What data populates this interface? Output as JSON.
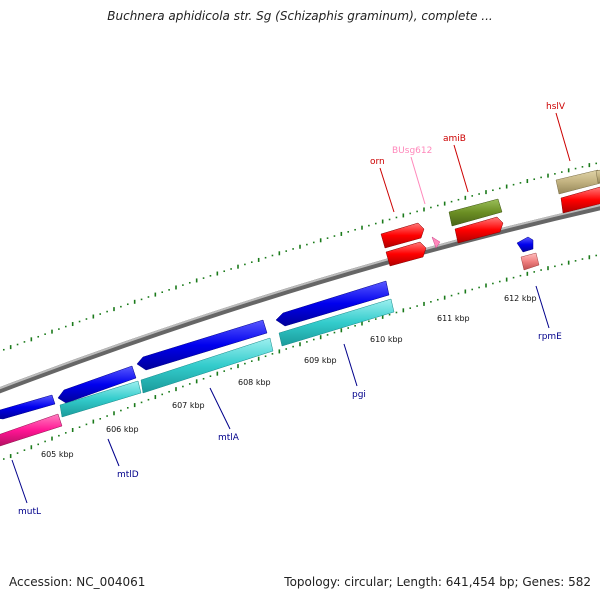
{
  "title": "Buchnera aphidicola str. Sg (Schizaphis graminum), complete ...",
  "footer": {
    "accession": "Accession: NC_004061",
    "summary": "Topology: circular; Length: 641,454 bp; Genes: 582"
  },
  "ticks": [
    "605 kbp",
    "606 kbp",
    "607 kbp",
    "608 kbp",
    "609 kbp",
    "610 kbp",
    "611 kbp",
    "612 kbp"
  ],
  "genes": [
    {
      "name": "mutL",
      "color": "#00008b"
    },
    {
      "name": "mtlD",
      "color": "#00008b"
    },
    {
      "name": "mtlA",
      "color": "#00008b"
    },
    {
      "name": "pgi",
      "color": "#00008b"
    },
    {
      "name": "rpmE",
      "color": "#00008b"
    },
    {
      "name": "orn",
      "color": "#cc0000"
    },
    {
      "name": "BUsg612",
      "color": "#ff88bb"
    },
    {
      "name": "amiB",
      "color": "#cc0000"
    },
    {
      "name": "hslV",
      "color": "#cc0000"
    }
  ],
  "colors": {
    "backbone": "#888888",
    "cds_forward": "#ff0000",
    "cds_reverse": "#0000ee",
    "rna_cyan": "#33cccc",
    "pink": "#ff1493",
    "olive": "#6b8e23",
    "khaki": "#c2b280",
    "gc_dots": "#1a7a1a"
  }
}
